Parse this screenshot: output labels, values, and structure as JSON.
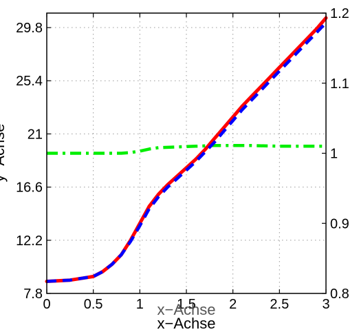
{
  "chart_data": {
    "type": "line",
    "xlabel": "x−Achse",
    "xlabel_ghost": "x−Achse",
    "ylabel": "y−Achse",
    "xlim": [
      0,
      3
    ],
    "ylim_left": [
      7.8,
      31.0
    ],
    "ylim_right": [
      0.8,
      1.2
    ],
    "x_ticks": [
      "0",
      "0.5",
      "1",
      "1.5",
      "2",
      "2.5",
      "3"
    ],
    "x_tick_values": [
      0,
      0.5,
      1,
      1.5,
      2,
      2.5,
      3
    ],
    "y_left_ticks": [
      "7.8",
      "12.2",
      "16.6",
      "21",
      "25.4",
      "29.8"
    ],
    "y_left_tick_values": [
      7.8,
      12.2,
      16.6,
      21,
      25.4,
      29.8
    ],
    "y_right_ticks": [
      "0.8",
      "0.9",
      "1",
      "1.1",
      "1.2"
    ],
    "y_right_tick_values": [
      0.8,
      0.9,
      1.0,
      1.1,
      1.2
    ],
    "grid": true,
    "series": [
      {
        "axis": "left",
        "color": "#ff0000",
        "style": "solid",
        "x": [
          0,
          0.25,
          0.5,
          0.6,
          0.7,
          0.8,
          0.9,
          1.0,
          1.1,
          1.2,
          1.3,
          1.4,
          1.5,
          1.6,
          1.7,
          1.8,
          1.9,
          2.0,
          2.1,
          2.2,
          2.3,
          2.4,
          2.5,
          2.6,
          2.7,
          2.8,
          2.9,
          3.0
        ],
        "y": [
          8.8,
          8.9,
          9.2,
          9.6,
          10.2,
          11.0,
          12.2,
          13.6,
          15.0,
          16.0,
          16.8,
          17.5,
          18.2,
          18.9,
          19.7,
          20.6,
          21.5,
          22.4,
          23.3,
          24.1,
          24.9,
          25.7,
          26.5,
          27.3,
          28.1,
          28.9,
          29.7,
          30.6
        ]
      },
      {
        "axis": "left",
        "color": "#0000ff",
        "style": "dashed",
        "x": [
          0,
          0.25,
          0.5,
          0.6,
          0.7,
          0.8,
          0.9,
          1.0,
          1.1,
          1.2,
          1.3,
          1.4,
          1.5,
          1.6,
          1.7,
          1.8,
          1.9,
          2.0,
          2.1,
          2.2,
          2.3,
          2.4,
          2.5,
          2.6,
          2.7,
          2.8,
          2.9,
          3.0
        ],
        "y": [
          8.8,
          8.9,
          9.2,
          9.6,
          10.2,
          11.0,
          12.1,
          13.4,
          14.8,
          15.8,
          16.6,
          17.3,
          18.0,
          18.7,
          19.5,
          20.3,
          21.2,
          22.1,
          23.0,
          23.8,
          24.6,
          25.4,
          26.2,
          27.0,
          27.8,
          28.6,
          29.4,
          30.2
        ]
      },
      {
        "axis": "right",
        "color": "#00ee00",
        "style": "dashdot",
        "x": [
          0,
          0.3,
          0.6,
          0.8,
          0.9,
          1.0,
          1.1,
          1.2,
          1.4,
          1.6,
          1.8,
          2.0,
          2.2,
          2.5,
          2.8,
          3.0
        ],
        "y": [
          1.0,
          1.0,
          1.0,
          1.0,
          1.001,
          1.003,
          1.006,
          1.008,
          1.009,
          1.01,
          1.011,
          1.011,
          1.011,
          1.01,
          1.01,
          1.01
        ]
      }
    ]
  }
}
